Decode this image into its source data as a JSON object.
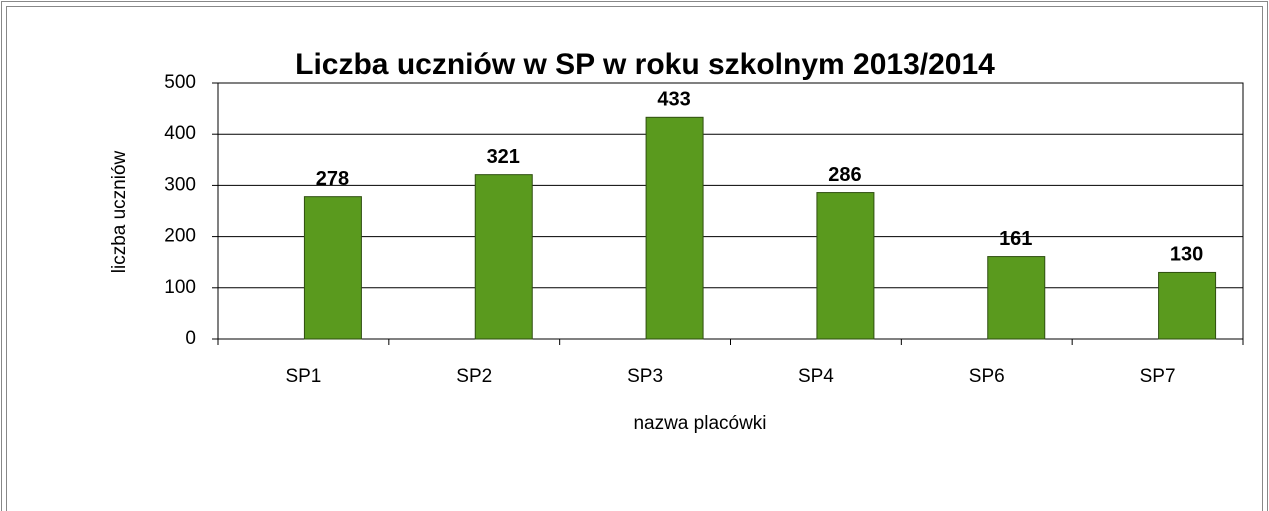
{
  "chart_data": {
    "type": "bar",
    "title": "Liczba uczniów w SP w roku szkolnym 2013/2014",
    "x_label": "nazwa placówki",
    "y_label": "liczba uczniów",
    "categories": [
      "SP1",
      "SP2",
      "SP3",
      "SP4",
      "SP6",
      "SP7"
    ],
    "values": [
      278,
      321,
      433,
      286,
      161,
      130
    ],
    "color": "#5a9a1e",
    "ylim": [
      0,
      500
    ],
    "yticks": [
      0,
      100,
      200,
      300,
      400,
      500
    ],
    "grid": true
  }
}
